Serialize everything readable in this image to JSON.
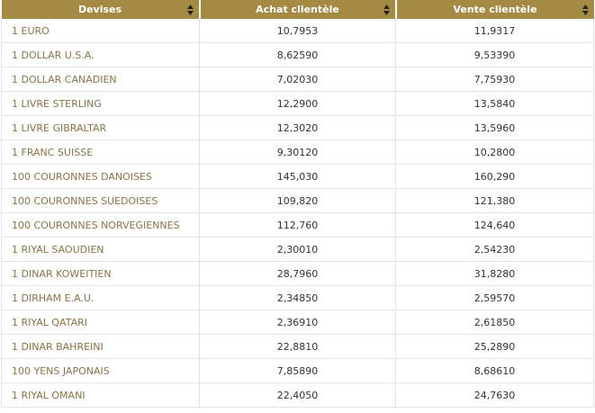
{
  "table": {
    "headers": [
      "Devises",
      "Achat clientèle",
      "Vente clientèle"
    ],
    "rows": [
      [
        "1 EURO",
        "10,7953",
        "11,9317"
      ],
      [
        "1 DOLLAR U.S.A.",
        "8,62590",
        "9,53390"
      ],
      [
        "1 DOLLAR CANADIEN",
        "7,02030",
        "7,75930"
      ],
      [
        "1 LIVRE STERLING",
        "12,2900",
        "13,5840"
      ],
      [
        "1 LIVRE GIBRALTAR",
        "12,3020",
        "13,5960"
      ],
      [
        "1 FRANC SUISSE",
        "9,30120",
        "10,2800"
      ],
      [
        "100 COURONNES DANOISES",
        "145,030",
        "160,290"
      ],
      [
        "100 COURONNES SUEDOISES",
        "109,820",
        "121,380"
      ],
      [
        "100 COURONNES NORVEGIENNES",
        "112,760",
        "124,640"
      ],
      [
        "1 RIYAL SAOUDIEN",
        "2,30010",
        "2,54230"
      ],
      [
        "1 DINAR KOWEITIEN",
        "28,7960",
        "31,8280"
      ],
      [
        "1 DIRHAM E.A.U.",
        "2,34850",
        "2,59570"
      ],
      [
        "1 RIYAL QATARI",
        "2,36910",
        "2,61850"
      ],
      [
        "1 DINAR BAHREINI",
        "22,8810",
        "25,2890"
      ],
      [
        "100 YENS JAPONAIS",
        "7,85890",
        "8,68610"
      ],
      [
        "1 RIYAL OMANI",
        "22,4050",
        "24,7630"
      ]
    ]
  }
}
